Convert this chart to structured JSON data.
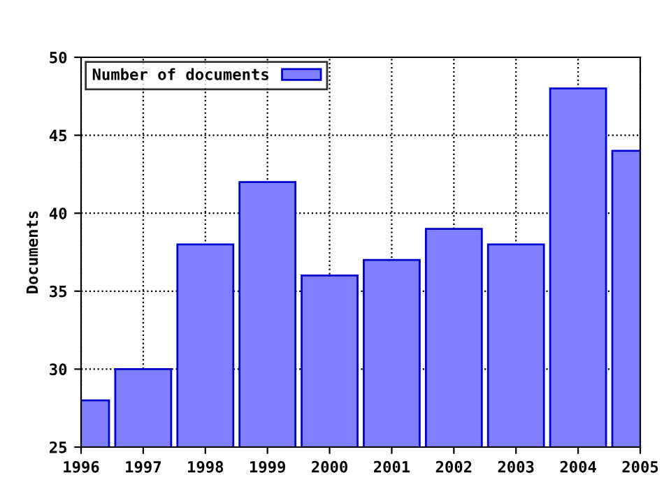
{
  "chart_data": {
    "type": "bar",
    "ylabel": "Documents",
    "x": [
      1996,
      1997,
      1998,
      1999,
      2000,
      2001,
      2002,
      2003,
      2004,
      2005
    ],
    "series": [
      {
        "name": "Number of documents",
        "color": "#7f7fff",
        "values": [
          28,
          30,
          38,
          42,
          36,
          37,
          39,
          38,
          48,
          44
        ]
      }
    ],
    "xlim": [
      1996,
      2005
    ],
    "xticks": [
      1996,
      1997,
      1998,
      1999,
      2000,
      2001,
      2002,
      2003,
      2004,
      2005
    ],
    "ylim": [
      25,
      50
    ],
    "yticks": [
      25,
      30,
      35,
      40,
      45,
      50
    ],
    "grid": true,
    "legend": "top left"
  }
}
